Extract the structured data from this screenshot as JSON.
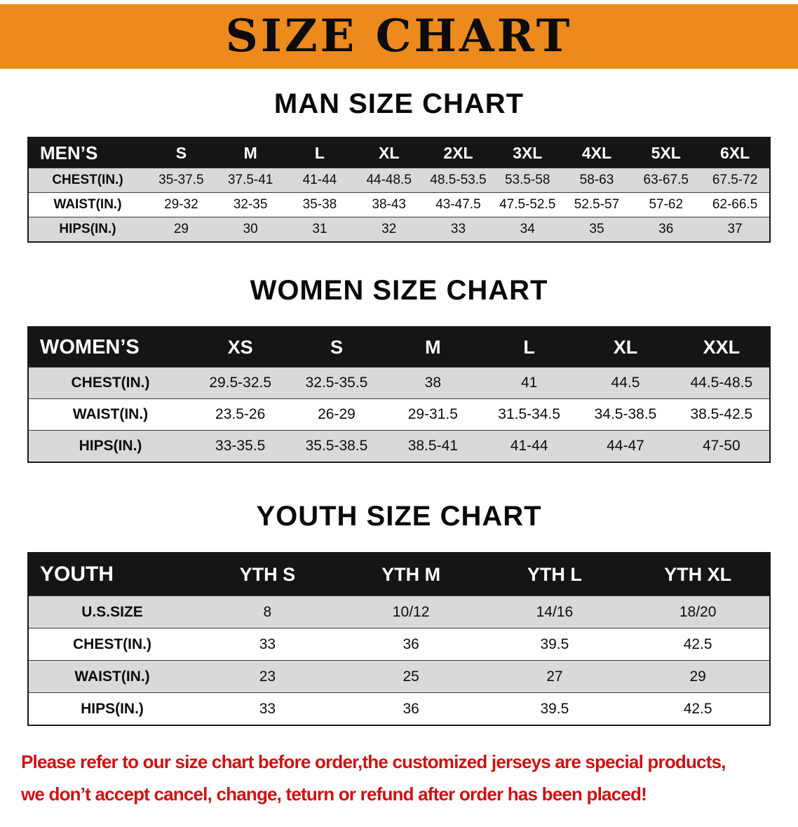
{
  "banner": {
    "title": "SIZE CHART"
  },
  "colors": {
    "banner_bg": "#ED8A1D",
    "header_bg": "#151515",
    "row_shade": "#d9d9d9",
    "note_color": "#cd1212"
  },
  "chart_data": [
    {
      "type": "table",
      "title": "MAN SIZE CHART",
      "corner_label": "MEN’S",
      "columns": [
        "S",
        "M",
        "L",
        "XL",
        "2XL",
        "3XL",
        "4XL",
        "5XL",
        "6XL"
      ],
      "rows": [
        {
          "label": "CHEST(IN.)",
          "values": [
            "35-37.5",
            "37.5-41",
            "41-44",
            "44-48.5",
            "48.5-53.5",
            "53.5-58",
            "58-63",
            "63-67.5",
            "67.5-72"
          ]
        },
        {
          "label": "WAIST(IN.)",
          "values": [
            "29-32",
            "32-35",
            "35-38",
            "38-43",
            "43-47.5",
            "47.5-52.5",
            "52.5-57",
            "57-62",
            "62-66.5"
          ]
        },
        {
          "label": "HIPS(IN.)",
          "values": [
            "29",
            "30",
            "31",
            "32",
            "33",
            "34",
            "35",
            "36",
            "37"
          ]
        }
      ],
      "layout": {
        "shaded_rows": "alternating starting with first",
        "header": "black bar with white text"
      }
    },
    {
      "type": "table",
      "title": "WOMEN SIZE CHART",
      "corner_label": "WOMEN’S",
      "columns": [
        "XS",
        "S",
        "M",
        "L",
        "XL",
        "XXL"
      ],
      "rows": [
        {
          "label": "CHEST(IN.)",
          "values": [
            "29.5-32.5",
            "32.5-35.5",
            "38",
            "41",
            "44.5",
            "44.5-48.5"
          ]
        },
        {
          "label": "WAIST(IN.)",
          "values": [
            "23.5-26",
            "26-29",
            "29-31.5",
            "31.5-34.5",
            "34.5-38.5",
            "38.5-42.5"
          ]
        },
        {
          "label": "HIPS(IN.)",
          "values": [
            "33-35.5",
            "35.5-38.5",
            "38.5-41",
            "41-44",
            "44-47",
            "47-50"
          ]
        }
      ],
      "layout": {
        "shaded_rows": "alternating starting with first",
        "header": "black bar with white text"
      }
    },
    {
      "type": "table",
      "title": "YOUTH SIZE CHART",
      "corner_label": "YOUTH",
      "columns": [
        "YTH S",
        "YTH M",
        "YTH L",
        "YTH XL"
      ],
      "rows": [
        {
          "label": "U.S.SIZE",
          "values": [
            "8",
            "10/12",
            "14/16",
            "18/20"
          ]
        },
        {
          "label": "CHEST(IN.)",
          "values": [
            "33",
            "36",
            "39.5",
            "42.5"
          ]
        },
        {
          "label": "WAIST(IN.)",
          "values": [
            "23",
            "25",
            "27",
            "29"
          ]
        },
        {
          "label": "HIPS(IN.)",
          "values": [
            "33",
            "36",
            "39.5",
            "42.5"
          ]
        }
      ],
      "layout": {
        "shaded_rows": "alternating starting with first",
        "header": "black bar with white text"
      }
    }
  ],
  "note": {
    "line1": "Please refer to our size chart before order,the customized jerseys are special products,",
    "line2": "we don’t accept cancel, change, teturn or refund after order has been placed!"
  }
}
